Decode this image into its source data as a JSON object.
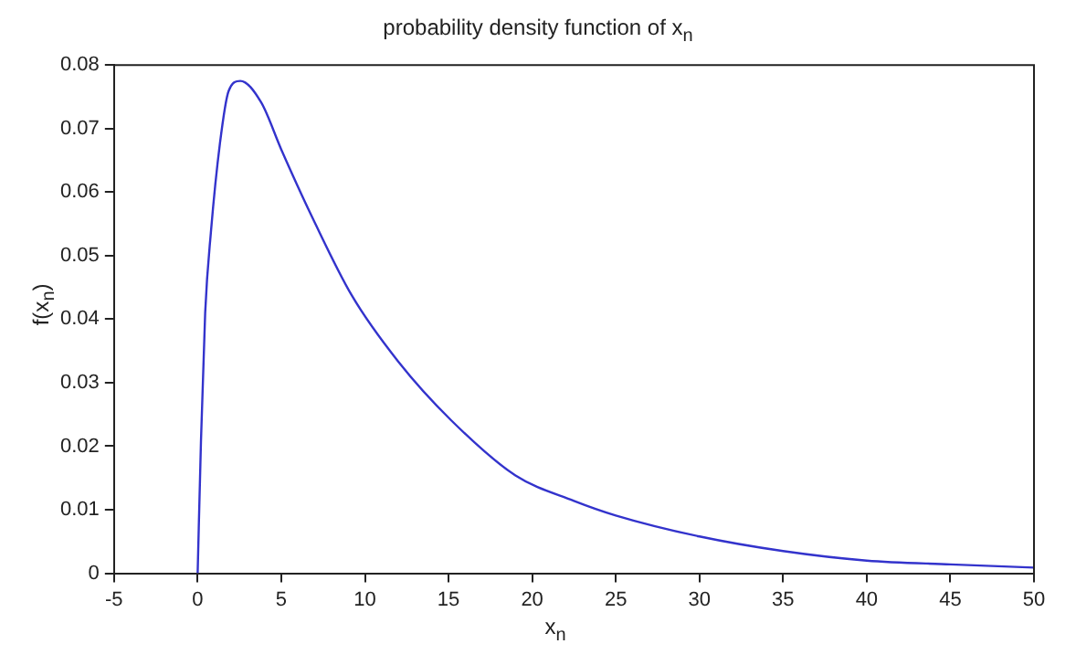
{
  "chart_data": {
    "type": "line",
    "title": "probability density function of x$_{n}$",
    "xlabel": "x$_{n}$",
    "ylabel": "f(x$_{n}$)",
    "x": [
      0,
      0.2,
      0.45,
      0.8,
      1.33,
      1.85,
      2.55,
      3.8,
      5,
      6.75,
      9.2,
      12,
      15.15,
      19,
      22.5,
      25,
      30,
      35,
      40,
      45,
      50
    ],
    "series": [
      {
        "color": "#3333cc",
        "values": [
          0,
          0.0209,
          0.041,
          0.0539,
          0.0676,
          0.0759,
          0.0775,
          0.0741,
          0.0667,
          0.0566,
          0.0438,
          0.0333,
          0.0241,
          0.0154,
          0.0114,
          0.0091,
          0.0058,
          0.0035,
          0.002,
          0.0014,
          0.0009
        ]
      }
    ],
    "xlim": [
      -5,
      50
    ],
    "xticks": [
      -5,
      0,
      5,
      10,
      15,
      20,
      25,
      30,
      35,
      40,
      45,
      50
    ],
    "ylim": [
      0,
      0.08
    ],
    "yticks": [
      0,
      0.01,
      0.02,
      0.03,
      0.04,
      0.05,
      0.06,
      0.07,
      0.08
    ],
    "grid": false,
    "legend": false,
    "marker": "none",
    "line_style": "solid"
  }
}
